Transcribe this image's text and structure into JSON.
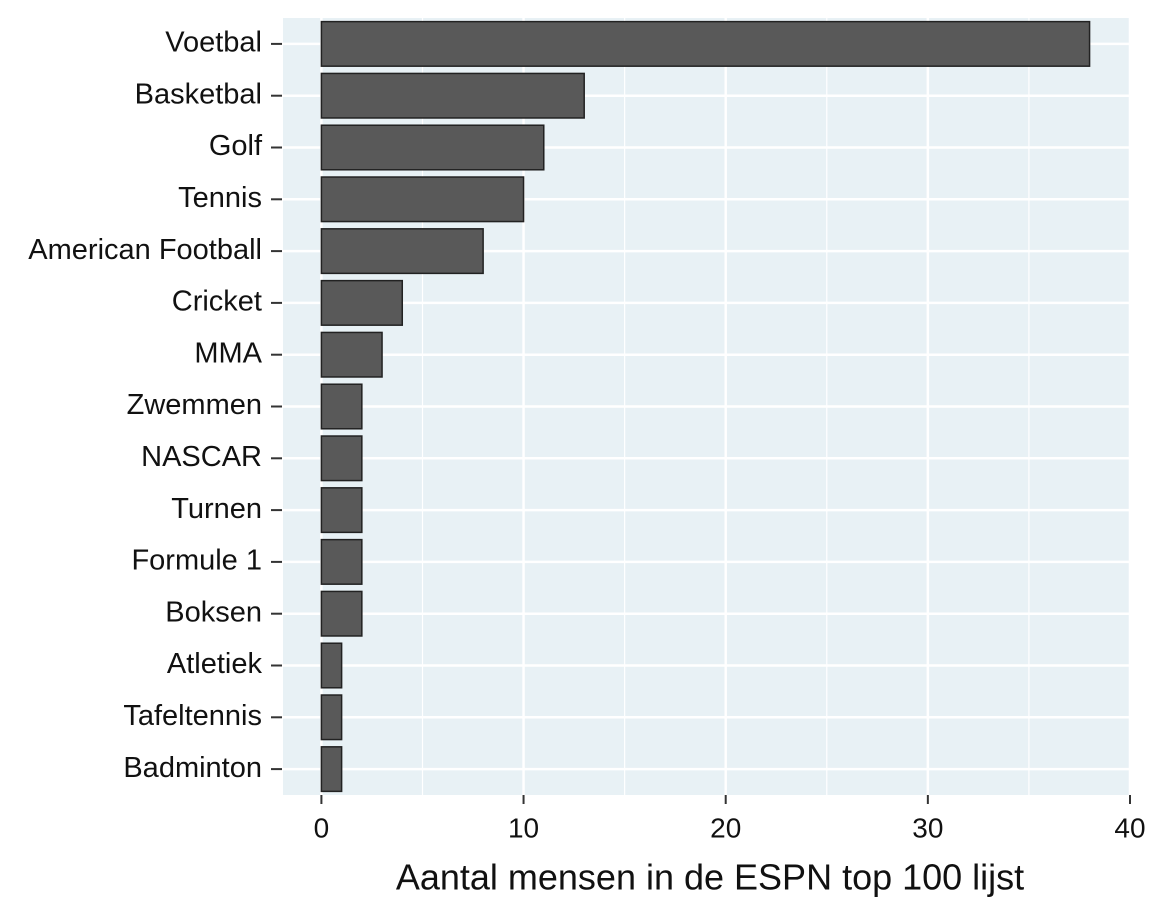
{
  "chart_data": {
    "type": "bar",
    "orientation": "horizontal",
    "x_label": "Aantal mensen in de ESPN top 100 lijst",
    "categories": [
      "Voetbal",
      "Basketbal",
      "Golf",
      "Tennis",
      "American Football",
      "Cricket",
      "MMA",
      "Zwemmen",
      "NASCAR",
      "Turnen",
      "Formule 1",
      "Boksen",
      "Atletiek",
      "Tafeltennis",
      "Badminton"
    ],
    "values": [
      38,
      13,
      11,
      10,
      8,
      4,
      3,
      2,
      2,
      2,
      2,
      2,
      1,
      1,
      1
    ],
    "color": "#595959",
    "xlim": [
      -1.9,
      40
    ],
    "xticks": [
      0,
      10,
      20,
      30,
      40
    ],
    "x_minor_ticks": [
      5,
      15,
      25,
      35
    ],
    "grid": true
  }
}
